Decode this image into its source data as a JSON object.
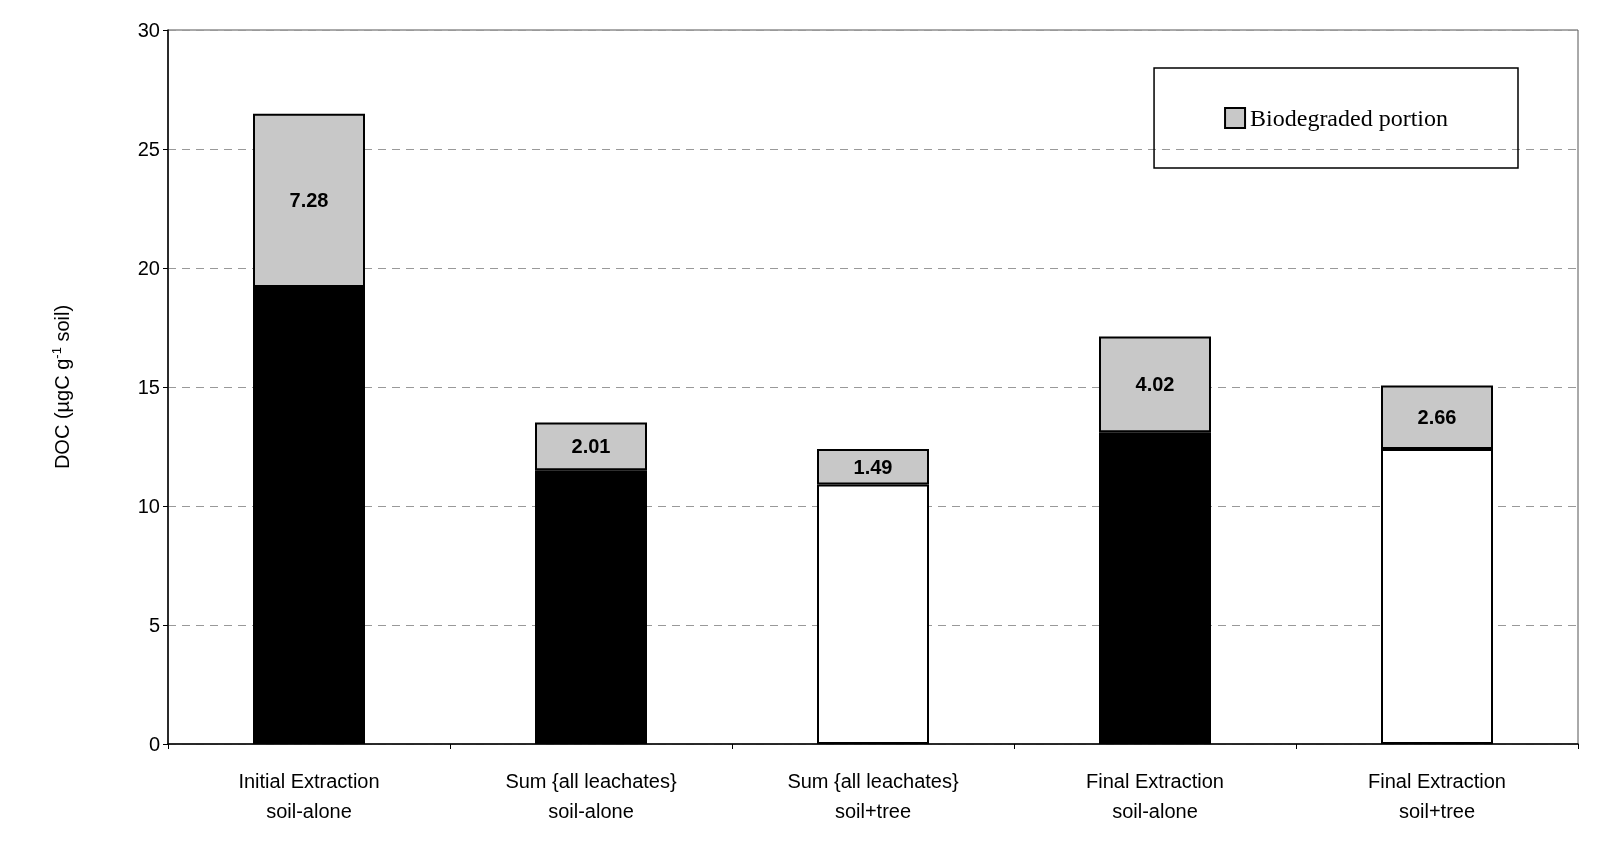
{
  "chart_data": {
    "type": "bar",
    "stacked": true,
    "ylabel": "DOC (µgC g$^{-1}$ soil)",
    "categories": [
      "Initial Extraction\nsoil-alone",
      "Sum {all leachates}\nsoil-alone",
      "Sum {all leachates}\nsoil+tree",
      "Final Extraction\nsoil-alone",
      "Final Extraction\nsoil+tree"
    ],
    "series": [
      {
        "colors": [
          "#000000",
          "#000000",
          "#ffffff",
          "#000000",
          "#ffffff"
        ],
        "values": [
          19.2,
          11.5,
          10.9,
          13.1,
          12.4
        ]
      },
      {
        "name": "Biodegraded portion",
        "color": "#c8c8c8",
        "values": [
          7.28,
          2.01,
          1.49,
          4.02,
          2.66
        ],
        "value_labels": [
          "7.28",
          "2.01",
          "1.49",
          "4.02",
          "2.66"
        ]
      }
    ],
    "ylim": [
      0,
      30
    ],
    "yticks": [
      0,
      5,
      10,
      15,
      20,
      25,
      30
    ],
    "grid": "y",
    "legend": "top right"
  }
}
